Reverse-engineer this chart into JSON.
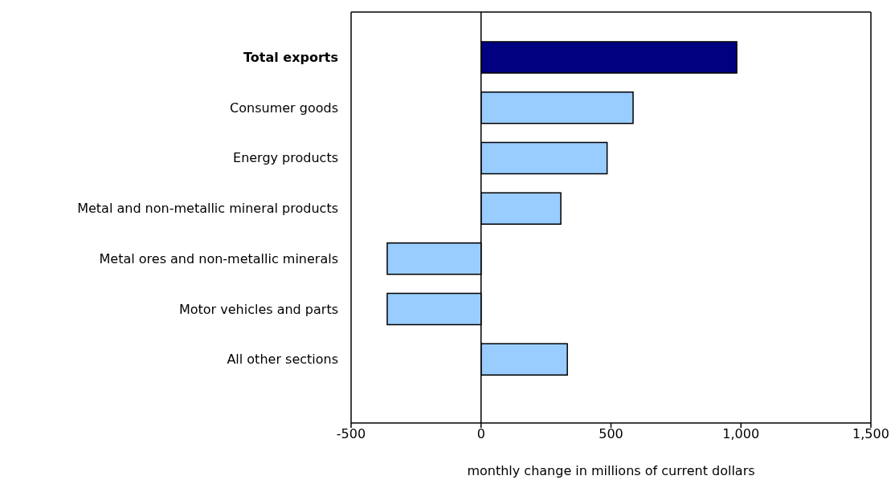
{
  "chart_data": {
    "type": "bar",
    "orientation": "horizontal",
    "xlabel": "monthly change in millions of current dollars",
    "categories": [
      "Total exports",
      "Consumer goods",
      "Energy products",
      "Metal and non-metallic mineral products",
      "Metal ores and non-metallic minerals",
      "Motor vehicles and parts",
      "All other sections"
    ],
    "values": [
      984,
      585,
      485,
      307,
      -361,
      -361,
      332
    ],
    "colors": [
      "#000080",
      "#99ccff",
      "#99ccff",
      "#99ccff",
      "#99ccff",
      "#99ccff",
      "#99ccff"
    ],
    "xlim": [
      -500,
      1500
    ],
    "xticks": [
      {
        "value": -500,
        "label": "-500"
      },
      0,
      500,
      {
        "value": 1000,
        "label": "1,000"
      },
      {
        "value": 1500,
        "label": "1,500"
      }
    ],
    "ref_lines": [
      {
        "axis": "x",
        "value": 0,
        "color": "#000000"
      }
    ],
    "grid": false
  }
}
